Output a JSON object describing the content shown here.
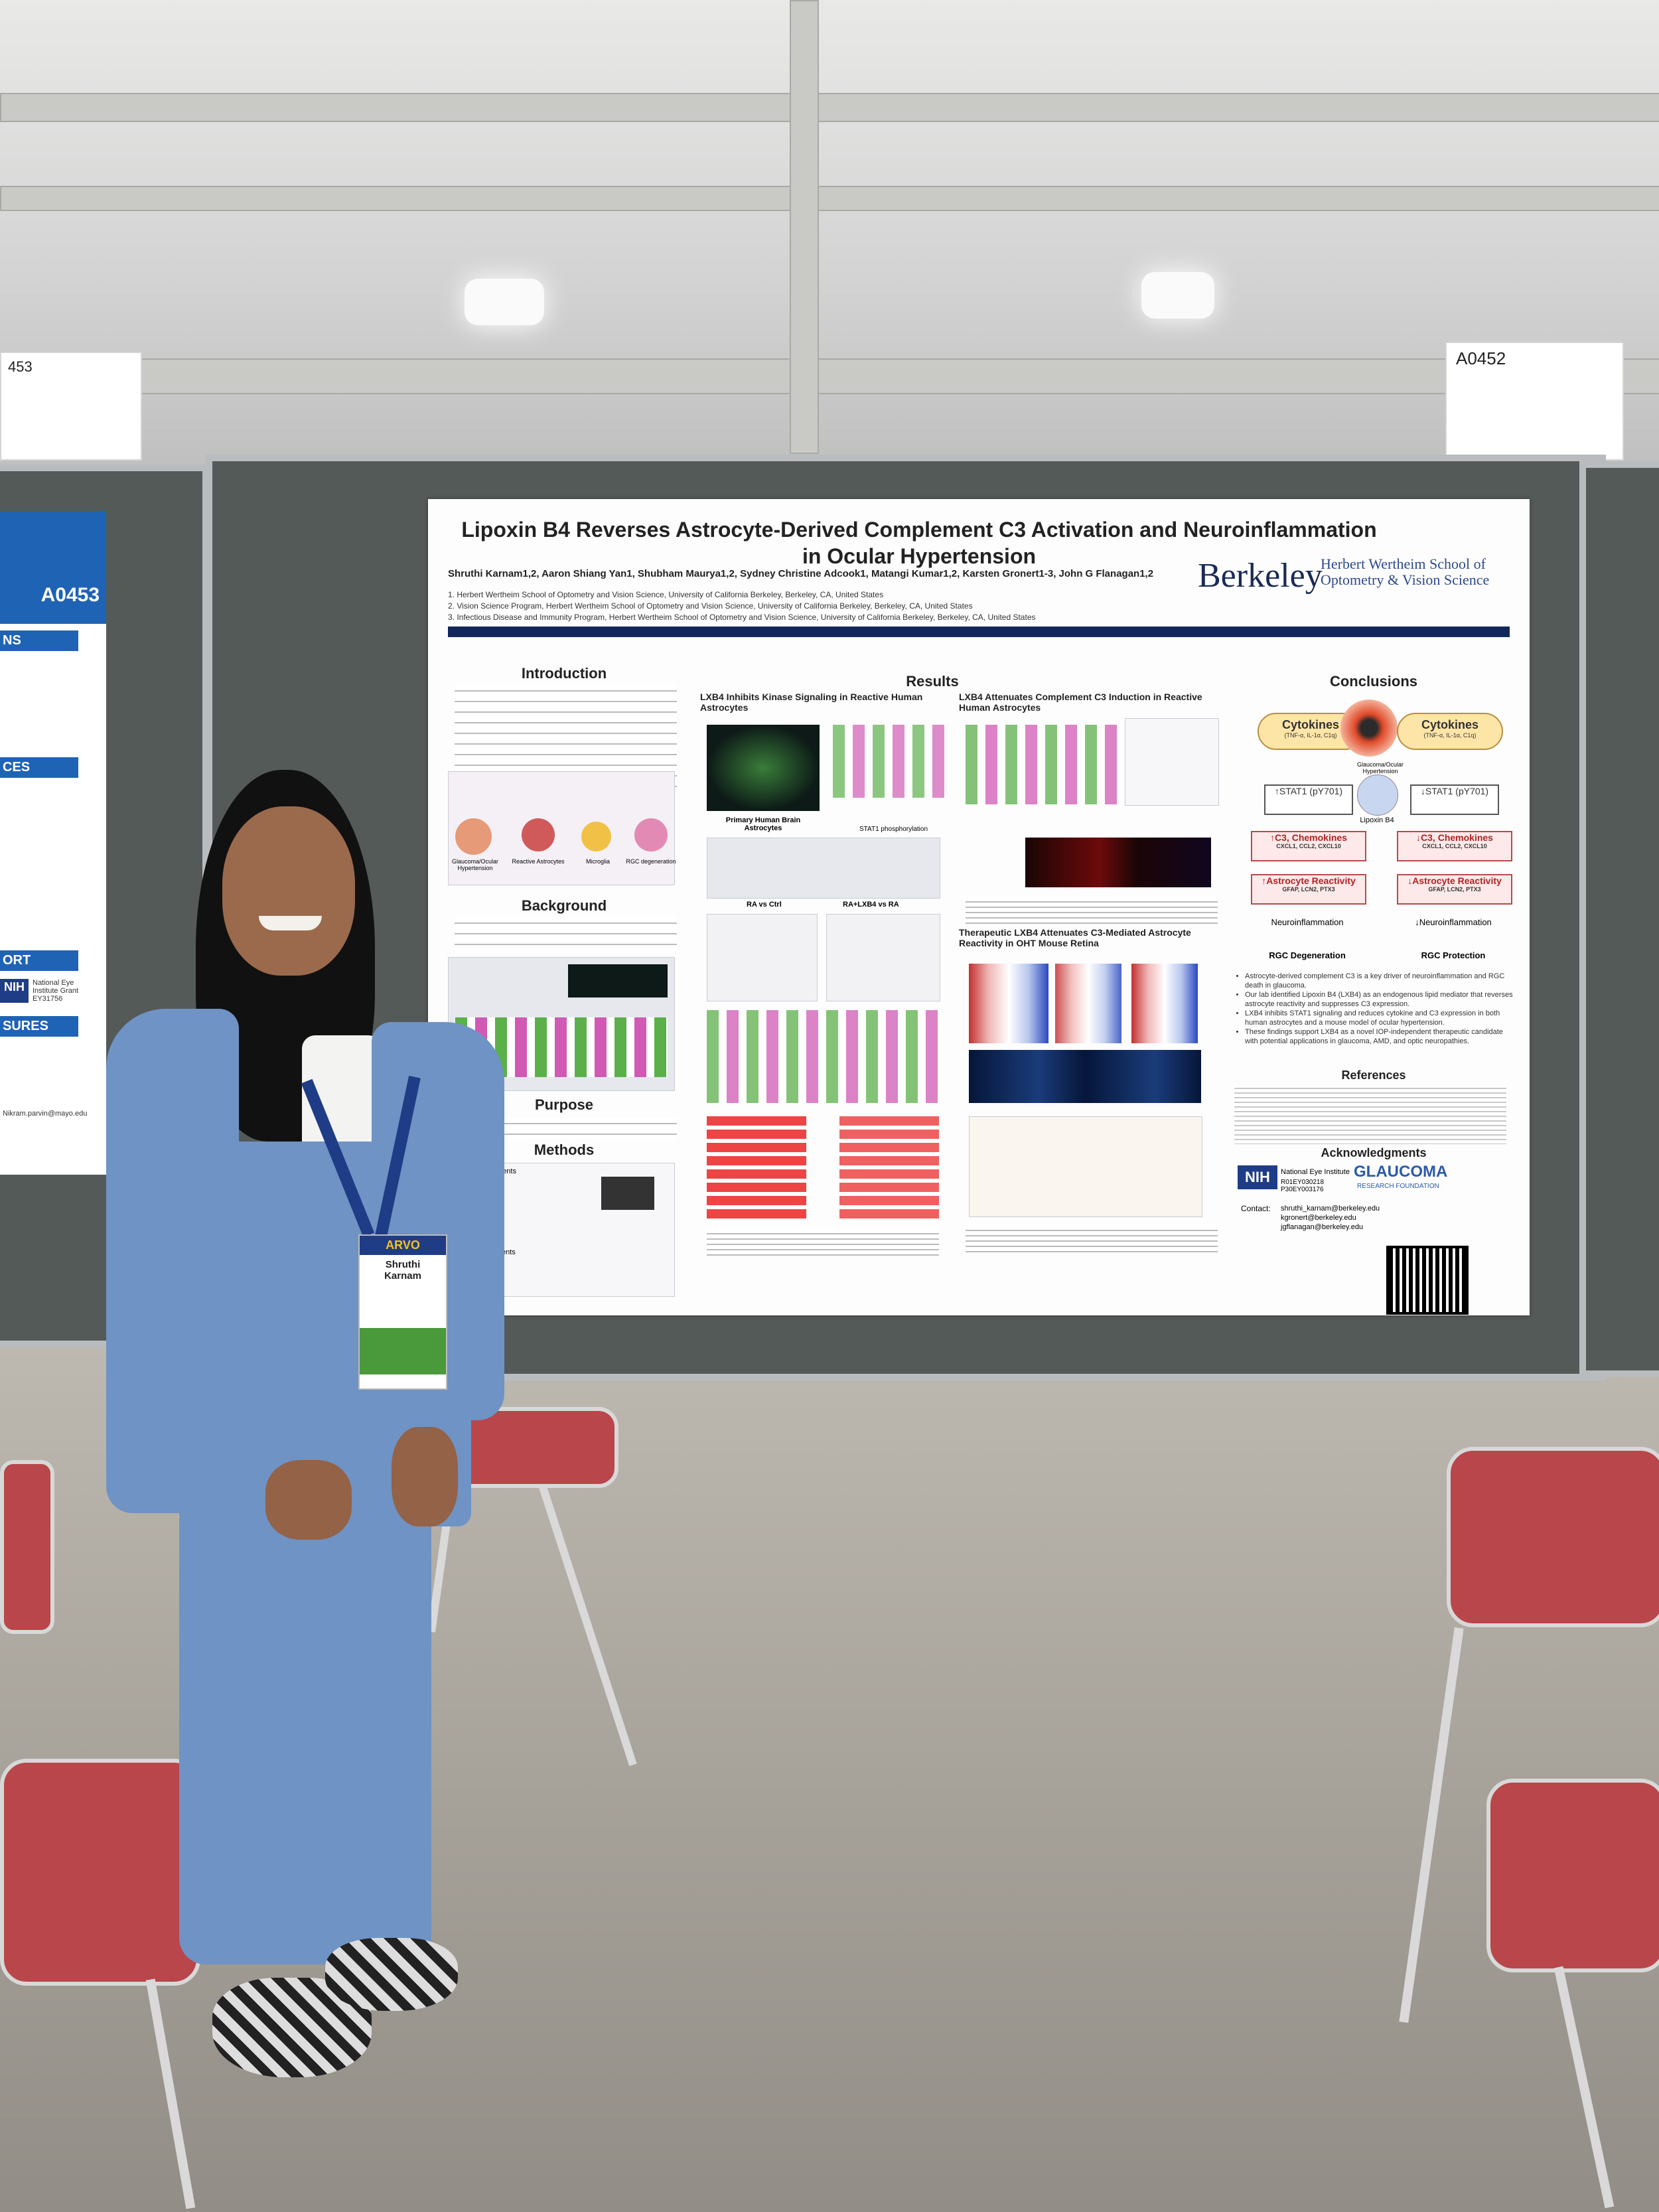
{
  "signs": {
    "left_number": "453",
    "right_number": "A0452",
    "poster_left_number": "A0453",
    "left_panel_sections": [
      "NS",
      "CES",
      "ORT",
      "SURES"
    ],
    "left_panel_nih": "NIH",
    "left_panel_grant": "National Eye Institute Grant EY31756",
    "left_panel_email": "Nikram.parvin@mayo.edu"
  },
  "poster": {
    "title_line1": "Lipoxin B4 Reverses Astrocyte-Derived Complement C3 Activation and Neuroinflammation",
    "title_line2": "in Ocular Hypertension",
    "authors": "Shruthi Karnam1,2, Aaron Shiang Yan1, Shubham Maurya1,2, Sydney Christine Adcook1, Matangi Kumar1,2, Karsten Gronert1-3, John G Flanagan1,2",
    "affiliations": [
      "1. Herbert Wertheim School of Optometry and Vision Science, University of California Berkeley, Berkeley, CA, United States",
      "2. Vision Science Program, Herbert Wertheim School of Optometry and Vision Science, University of California Berkeley, Berkeley, CA, United States",
      "3. Infectious Disease and Immunity Program, Herbert Wertheim School of Optometry and Vision Science, University of California Berkeley, Berkeley, CA, United States"
    ],
    "logo_berkeley": "Berkeley",
    "logo_school": "Herbert Wertheim School of Optometry & Vision Science",
    "sections": {
      "introduction": "Introduction",
      "background": "Background",
      "purpose": "Purpose",
      "methods": "Methods",
      "results": "Results",
      "conclusions": "Conclusions",
      "references": "References",
      "acknowledgments": "Acknowledgments"
    },
    "results_headings": {
      "kinase": "LXB4 Inhibits Kinase Signaling in Reactive Human Astrocytes",
      "complement": "LXB4 Attenuates Complement C3 Induction in Reactive Human Astrocytes",
      "therapeutic": "Therapeutic LXB4 Attenuates C3-Mediated Astrocyte Reactivity in OHT Mouse Retina",
      "primary": "Primary Human Brain Astrocytes",
      "stat1": "STAT1 phosphorylation",
      "ra_vs_ctrl": "RA vs Ctrl",
      "ralxb_vs_ra": "RA+LXB4 vs RA"
    },
    "methods_labels": {
      "in_vitro": "In vitro experiments",
      "in_vivo": "In vivo experiments"
    },
    "conclusions_diagram": {
      "cytokines_left": "Cytokines",
      "cytokines_left_sub": "(TNF-α, IL-1α, C1q)",
      "cytokines_right": "Cytokines",
      "cytokines_right_sub": "(TNF-α, IL-1α, C1q)",
      "glaucoma_label": "Glaucoma/Ocular Hypertension",
      "lipoxin": "Lipoxin B4",
      "stat_up": "↑STAT1 (pY701)",
      "stat_down": "↓STAT1 (pY701)",
      "c3_up": "↑C3, Chemokines",
      "c3_up_sub": "CXCL1, CCL2, CXCL10",
      "c3_down": "↓C3, Chemokines",
      "c3_down_sub": "CXCL1, CCL2, CXCL10",
      "react_up": "↑Astrocyte Reactivity",
      "react_up_sub": "GFAP, LCN2, PTX3",
      "react_down": "↓Astrocyte Reactivity",
      "react_down_sub": "GFAP, LCN2, PTX3",
      "neuro_left": "Neuroinflammation",
      "neuro_right": "↓Neuroinflammation",
      "rgc_deg": "RGC Degeneration",
      "rgc_prot": "RGC Protection"
    },
    "conclusion_points": [
      "Astrocyte-derived complement C3 is a key driver of neuroinflammation and RGC death in glaucoma.",
      "Our lab identified Lipoxin B4 (LXB4) as an endogenous lipid mediator that reverses astrocyte reactivity and suppresses C3 expression.",
      "LXB4 inhibits STAT1 signaling and reduces cytokine and C3 expression in both human astrocytes and a mouse model of ocular hypertension.",
      "These findings support LXB4 as a novel IOP-independent therapeutic candidate with potential applications in glaucoma, AMD, and optic neuropathies."
    ],
    "ack_nih": "NIH",
    "ack_nei": "National Eye Institute",
    "ack_grants": "R01EY030218 P30EY003176",
    "ack_glaucoma": "GLAUCOMA",
    "ack_glaucoma_sub": "RESEARCH FOUNDATION",
    "contact_label": "Contact:",
    "contacts": [
      "shruthi_karnam@berkeley.edu",
      "kgronert@berkeley.edu",
      "jgflanagan@berkeley.edu"
    ],
    "intro_heading_fig": "Glaucoma/Ocular Hypertension",
    "intro_fig_labels": [
      "Reactive Astrocytes",
      "Microglia",
      "RGC degeneration"
    ]
  },
  "badge": {
    "event": "ARVO",
    "name_first": "Shruthi",
    "name_last": "Karnam"
  }
}
